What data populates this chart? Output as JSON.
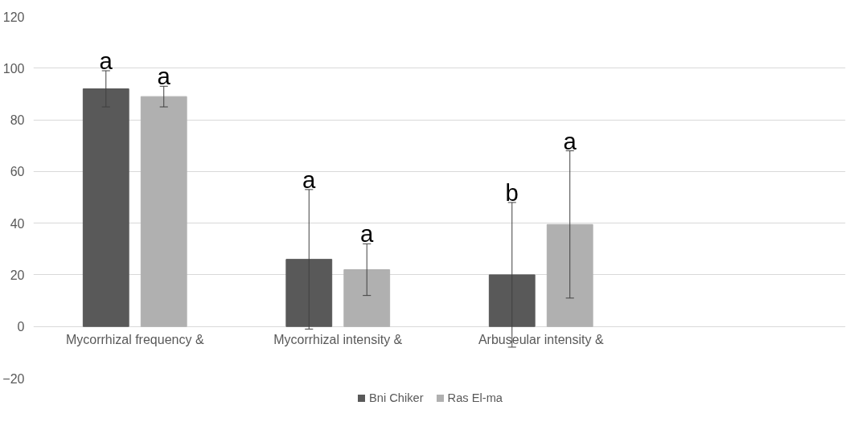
{
  "chart_data": {
    "type": "bar",
    "categories": [
      "Mycorrhizal frequency &",
      "Mycorrhizal intensity &",
      "Arbuseular intensity &",
      null
    ],
    "series": [
      {
        "name": "Bni Chiker",
        "color": "#595959",
        "values": [
          92,
          26,
          20,
          null
        ],
        "errors": [
          7,
          27,
          28,
          null
        ],
        "value_labels": [
          "a",
          "a",
          "b",
          null
        ]
      },
      {
        "name": "Ras El-ma",
        "color": "#b0b0b0",
        "values": [
          89,
          22,
          39.5,
          null
        ],
        "errors": [
          4,
          10,
          28.5,
          null
        ],
        "value_labels": [
          "a",
          "a",
          "a",
          null
        ]
      }
    ],
    "ylim": [
      -20,
      120
    ],
    "yticks": [
      -20,
      0,
      20,
      40,
      60,
      80,
      100,
      120
    ],
    "grid": "y",
    "legend": "bottom"
  }
}
